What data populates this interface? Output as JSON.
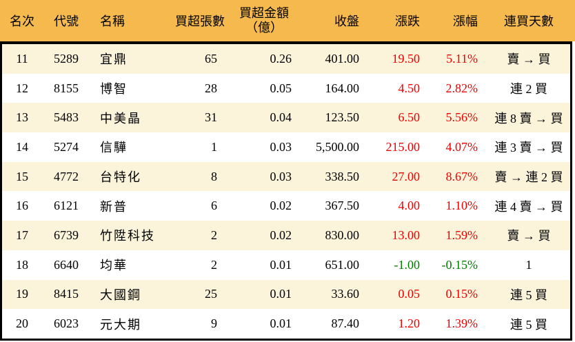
{
  "colors": {
    "header_bg": "#f5b94e",
    "stripe_row_bg": "#fcf3db",
    "plain_row_bg": "#ffffff",
    "up_text": "#ee0000",
    "down_text": "#007b00",
    "border": "#000000"
  },
  "chart_data": {
    "type": "table",
    "header": {
      "rank": "名次",
      "code": "代號",
      "name": "名稱",
      "volume": "買超張數",
      "amount_line1": "買超金額",
      "amount_line2": "（億）",
      "close": "收盤",
      "change": "漲跌",
      "change_pct": "漲幅",
      "days": "連買天數"
    },
    "rows": [
      {
        "rank": "11",
        "code": "5289",
        "name": "宜鼎",
        "volume": "65",
        "amount": "0.26",
        "close": "401.00",
        "change": "19.50",
        "change_pct": "5.11%",
        "trend": "up",
        "days": "賣 → 買"
      },
      {
        "rank": "12",
        "code": "8155",
        "name": "博智",
        "volume": "28",
        "amount": "0.05",
        "close": "164.00",
        "change": "4.50",
        "change_pct": "2.82%",
        "trend": "up",
        "days": "連 2 買"
      },
      {
        "rank": "13",
        "code": "5483",
        "name": "中美晶",
        "volume": "31",
        "amount": "0.04",
        "close": "123.50",
        "change": "6.50",
        "change_pct": "5.56%",
        "trend": "up",
        "days": "連 8 賣 → 買"
      },
      {
        "rank": "14",
        "code": "5274",
        "name": "信驊",
        "volume": "1",
        "amount": "0.03",
        "close": "5,500.00",
        "change": "215.00",
        "change_pct": "4.07%",
        "trend": "up",
        "days": "連 3 賣 → 買"
      },
      {
        "rank": "15",
        "code": "4772",
        "name": "台特化",
        "volume": "8",
        "amount": "0.03",
        "close": "338.50",
        "change": "27.00",
        "change_pct": "8.67%",
        "trend": "up",
        "days": "賣 → 連 2 買"
      },
      {
        "rank": "16",
        "code": "6121",
        "name": "新普",
        "volume": "6",
        "amount": "0.02",
        "close": "367.50",
        "change": "4.00",
        "change_pct": "1.10%",
        "trend": "up",
        "days": "連 4 賣 → 買"
      },
      {
        "rank": "17",
        "code": "6739",
        "name": "竹陞科技",
        "volume": "2",
        "amount": "0.02",
        "close": "830.00",
        "change": "13.00",
        "change_pct": "1.59%",
        "trend": "up",
        "days": "賣 → 買"
      },
      {
        "rank": "18",
        "code": "6640",
        "name": "均華",
        "volume": "2",
        "amount": "0.01",
        "close": "651.00",
        "change": "-1.00",
        "change_pct": "-0.15%",
        "trend": "down",
        "days": "1"
      },
      {
        "rank": "19",
        "code": "8415",
        "name": "大國鋼",
        "volume": "25",
        "amount": "0.01",
        "close": "33.60",
        "change": "0.05",
        "change_pct": "0.15%",
        "trend": "up",
        "days": "連 5 買"
      },
      {
        "rank": "20",
        "code": "6023",
        "name": "元大期",
        "volume": "9",
        "amount": "0.01",
        "close": "87.40",
        "change": "1.20",
        "change_pct": "1.39%",
        "trend": "up",
        "days": "連 5 買"
      }
    ]
  }
}
